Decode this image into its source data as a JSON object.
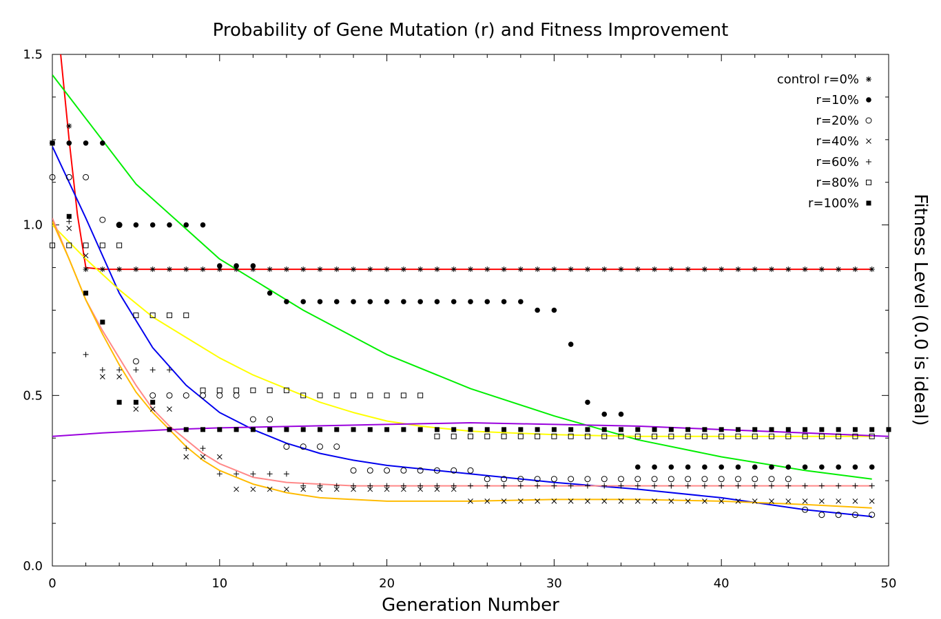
{
  "chart_data": {
    "type": "scatter",
    "title": "Probability of Gene Mutation (r) and Fitness Improvement",
    "xlabel": "Generation Number",
    "ylabel": "Fitness Level (0.0 is ideal)",
    "xlim": [
      0,
      50
    ],
    "ylim": [
      0,
      1.5
    ],
    "x_ticks": [
      0,
      10,
      20,
      30,
      40,
      50
    ],
    "y_ticks": [
      0.0,
      0.5,
      1.0,
      1.5
    ],
    "y_tick_labels": [
      "0.0",
      "0.5",
      "1.0",
      "1.5"
    ],
    "grid": false,
    "legend_position": "top-right",
    "series": [
      {
        "name": "control r=0%",
        "marker": "asterisk",
        "x": [
          0,
          1,
          2,
          3,
          4,
          5,
          6,
          7,
          8,
          9,
          10,
          11,
          12,
          13,
          14,
          15,
          16,
          17,
          18,
          19,
          20,
          21,
          22,
          23,
          24,
          25,
          26,
          27,
          28,
          29,
          30,
          31,
          32,
          33,
          34,
          35,
          36,
          37,
          38,
          39,
          40,
          41,
          42,
          43,
          44,
          45,
          46,
          47,
          48,
          49
        ],
        "y": [
          1.24,
          1.29,
          0.87,
          0.87,
          0.87,
          0.87,
          0.87,
          0.87,
          0.87,
          0.87,
          0.87,
          0.87,
          0.87,
          0.87,
          0.87,
          0.87,
          0.87,
          0.87,
          0.87,
          0.87,
          0.87,
          0.87,
          0.87,
          0.87,
          0.87,
          0.87,
          0.87,
          0.87,
          0.87,
          0.87,
          0.87,
          0.87,
          0.87,
          0.87,
          0.87,
          0.87,
          0.87,
          0.87,
          0.87,
          0.87,
          0.87,
          0.87,
          0.87,
          0.87,
          0.87,
          0.87,
          0.87,
          0.87,
          0.87,
          0.87
        ]
      },
      {
        "name": "r=10%",
        "marker": "filled-circle",
        "x": [
          0,
          1,
          2,
          3,
          4,
          5,
          6,
          7,
          8,
          9,
          10,
          11,
          12,
          13,
          14,
          15,
          16,
          17,
          18,
          19,
          20,
          21,
          22,
          23,
          24,
          25,
          26,
          27,
          28,
          29,
          30,
          31,
          32,
          33,
          34,
          35,
          36,
          37,
          38,
          39,
          40,
          41,
          42,
          43,
          44,
          45,
          46,
          47,
          48,
          49
        ],
        "y": [
          1.24,
          1.24,
          1.24,
          1.24,
          1.0,
          1.0,
          1.0,
          1.0,
          1.0,
          1.0,
          0.88,
          0.88,
          0.88,
          0.8,
          0.775,
          0.775,
          0.775,
          0.775,
          0.775,
          0.775,
          0.775,
          0.775,
          0.775,
          0.775,
          0.775,
          0.775,
          0.775,
          0.775,
          0.775,
          0.75,
          0.75,
          0.65,
          0.48,
          0.445,
          0.445,
          0.29,
          0.29,
          0.29,
          0.29,
          0.29,
          0.29,
          0.29,
          0.29,
          0.29,
          0.29,
          0.29,
          0.29,
          0.29,
          0.29,
          0.29
        ]
      },
      {
        "name": "r=20%",
        "marker": "open-circle",
        "x": [
          0,
          1,
          2,
          3,
          4,
          5,
          6,
          7,
          8,
          9,
          10,
          11,
          12,
          13,
          14,
          15,
          16,
          17,
          18,
          19,
          20,
          21,
          22,
          23,
          24,
          25,
          26,
          27,
          28,
          29,
          30,
          31,
          32,
          33,
          34,
          35,
          36,
          37,
          38,
          39,
          40,
          41,
          42,
          43,
          44,
          45,
          46,
          47,
          48,
          49
        ],
        "y": [
          1.14,
          1.14,
          1.14,
          1.015,
          1.0,
          0.6,
          0.5,
          0.5,
          0.5,
          0.5,
          0.5,
          0.5,
          0.43,
          0.43,
          0.35,
          0.35,
          0.35,
          0.35,
          0.28,
          0.28,
          0.28,
          0.28,
          0.28,
          0.28,
          0.28,
          0.28,
          0.255,
          0.255,
          0.255,
          0.255,
          0.255,
          0.255,
          0.255,
          0.255,
          0.255,
          0.255,
          0.255,
          0.255,
          0.255,
          0.255,
          0.255,
          0.255,
          0.255,
          0.255,
          0.255,
          0.165,
          0.15,
          0.15,
          0.15,
          0.15
        ]
      },
      {
        "name": "r=40%",
        "marker": "x",
        "x": [
          0,
          1,
          2,
          3,
          4,
          5,
          6,
          7,
          8,
          9,
          10,
          11,
          12,
          13,
          14,
          15,
          16,
          17,
          18,
          19,
          20,
          21,
          22,
          23,
          24,
          25,
          26,
          27,
          28,
          29,
          30,
          31,
          32,
          33,
          34,
          35,
          36,
          37,
          38,
          39,
          40,
          41,
          42,
          43,
          44,
          45,
          46,
          47,
          48,
          49
        ],
        "y": [
          1.24,
          0.99,
          0.91,
          0.555,
          0.555,
          0.46,
          0.46,
          0.46,
          0.32,
          0.32,
          0.32,
          0.225,
          0.225,
          0.225,
          0.225,
          0.225,
          0.225,
          0.225,
          0.225,
          0.225,
          0.225,
          0.225,
          0.225,
          0.225,
          0.225,
          0.19,
          0.19,
          0.19,
          0.19,
          0.19,
          0.19,
          0.19,
          0.19,
          0.19,
          0.19,
          0.19,
          0.19,
          0.19,
          0.19,
          0.19,
          0.19,
          0.19,
          0.19,
          0.19,
          0.19,
          0.19,
          0.19,
          0.19,
          0.19,
          0.19
        ]
      },
      {
        "name": "r=60%",
        "marker": "plus",
        "x": [
          0,
          1,
          2,
          3,
          4,
          5,
          6,
          7,
          8,
          9,
          10,
          11,
          12,
          13,
          14,
          15,
          16,
          17,
          18,
          19,
          20,
          21,
          22,
          23,
          24,
          25,
          26,
          27,
          28,
          29,
          30,
          31,
          32,
          33,
          34,
          35,
          36,
          37,
          38,
          39,
          40,
          41,
          42,
          43,
          44,
          45,
          46,
          47,
          48,
          49
        ],
        "y": [
          1.24,
          1.01,
          0.62,
          0.575,
          0.575,
          0.575,
          0.575,
          0.575,
          0.345,
          0.345,
          0.27,
          0.27,
          0.27,
          0.27,
          0.27,
          0.235,
          0.235,
          0.235,
          0.235,
          0.235,
          0.235,
          0.235,
          0.235,
          0.235,
          0.235,
          0.235,
          0.235,
          0.235,
          0.235,
          0.235,
          0.235,
          0.235,
          0.235,
          0.235,
          0.235,
          0.235,
          0.235,
          0.235,
          0.235,
          0.235,
          0.235,
          0.235,
          0.235,
          0.235,
          0.235,
          0.235,
          0.235,
          0.235,
          0.235,
          0.235
        ]
      },
      {
        "name": "r=80%",
        "marker": "open-square",
        "x": [
          0,
          1,
          2,
          3,
          4,
          5,
          6,
          7,
          8,
          9,
          10,
          11,
          12,
          13,
          14,
          15,
          16,
          17,
          18,
          19,
          20,
          21,
          22,
          23,
          24,
          25,
          26,
          27,
          28,
          29,
          30,
          31,
          32,
          33,
          34,
          35,
          36,
          37,
          38,
          39,
          40,
          41,
          42,
          43,
          44,
          45,
          46,
          47,
          48,
          49
        ],
        "y": [
          0.94,
          0.94,
          0.94,
          0.94,
          0.94,
          0.735,
          0.735,
          0.735,
          0.735,
          0.515,
          0.515,
          0.515,
          0.515,
          0.515,
          0.515,
          0.5,
          0.5,
          0.5,
          0.5,
          0.5,
          0.5,
          0.5,
          0.5,
          0.38,
          0.38,
          0.38,
          0.38,
          0.38,
          0.38,
          0.38,
          0.38,
          0.38,
          0.38,
          0.38,
          0.38,
          0.38,
          0.38,
          0.38,
          0.38,
          0.38,
          0.38,
          0.38,
          0.38,
          0.38,
          0.38,
          0.38,
          0.38,
          0.38,
          0.38,
          0.38
        ]
      },
      {
        "name": "r=100%",
        "marker": "filled-square",
        "x": [
          0,
          1,
          2,
          3,
          4,
          5,
          6,
          7,
          8,
          9,
          10,
          11,
          12,
          13,
          14,
          15,
          16,
          17,
          18,
          19,
          20,
          21,
          22,
          23,
          24,
          25,
          26,
          27,
          28,
          29,
          30,
          31,
          32,
          33,
          34,
          35,
          36,
          37,
          38,
          39,
          40,
          41,
          42,
          43,
          44,
          45,
          46,
          47,
          48,
          49,
          50
        ],
        "y": [
          1.24,
          1.025,
          0.8,
          0.715,
          0.48,
          0.48,
          0.48,
          0.4,
          0.4,
          0.4,
          0.4,
          0.4,
          0.4,
          0.4,
          0.4,
          0.4,
          0.4,
          0.4,
          0.4,
          0.4,
          0.4,
          0.4,
          0.4,
          0.4,
          0.4,
          0.4,
          0.4,
          0.4,
          0.4,
          0.4,
          0.4,
          0.4,
          0.4,
          0.4,
          0.4,
          0.4,
          0.4,
          0.4,
          0.4,
          0.4,
          0.4,
          0.4,
          0.4,
          0.4,
          0.4,
          0.4,
          0.4,
          0.4,
          0.4,
          0.4,
          0.4
        ]
      }
    ],
    "fit_lines": [
      {
        "color": "#ff0000",
        "x": [
          0.5,
          1,
          1.5,
          2,
          3,
          5,
          10,
          20,
          30,
          40,
          49
        ],
        "y": [
          1.5,
          1.25,
          1.03,
          0.875,
          0.87,
          0.87,
          0.87,
          0.87,
          0.87,
          0.87,
          0.87
        ]
      },
      {
        "color": "#00ee00",
        "x": [
          0,
          5,
          10,
          15,
          20,
          25,
          30,
          35,
          40,
          45,
          49
        ],
        "y": [
          1.44,
          1.12,
          0.9,
          0.75,
          0.62,
          0.52,
          0.44,
          0.37,
          0.32,
          0.28,
          0.255
        ]
      },
      {
        "color": "#0000ee",
        "x": [
          0,
          2,
          4,
          6,
          8,
          10,
          12,
          14,
          16,
          18,
          20,
          25,
          30,
          35,
          40,
          45,
          49
        ],
        "y": [
          1.23,
          1.02,
          0.8,
          0.64,
          0.53,
          0.45,
          0.4,
          0.36,
          0.33,
          0.31,
          0.295,
          0.27,
          0.245,
          0.225,
          0.2,
          0.165,
          0.145
        ]
      },
      {
        "color": "#ffff00",
        "x": [
          0,
          2,
          4,
          6,
          8,
          10,
          12,
          14,
          16,
          18,
          20,
          22,
          25,
          30,
          35,
          40,
          45,
          49
        ],
        "y": [
          1.0,
          0.9,
          0.81,
          0.73,
          0.67,
          0.61,
          0.56,
          0.52,
          0.48,
          0.45,
          0.425,
          0.41,
          0.395,
          0.385,
          0.38,
          0.38,
          0.38,
          0.38
        ]
      },
      {
        "color": "#ff8888",
        "x": [
          0,
          1,
          2,
          3,
          4,
          5,
          6,
          7,
          8,
          9,
          10,
          12,
          14,
          16,
          18,
          20,
          25,
          30,
          35,
          40,
          45,
          49
        ],
        "y": [
          1.02,
          0.9,
          0.78,
          0.69,
          0.61,
          0.53,
          0.46,
          0.41,
          0.37,
          0.33,
          0.3,
          0.26,
          0.245,
          0.24,
          0.235,
          0.235,
          0.235,
          0.235,
          0.235,
          0.235,
          0.235,
          0.235
        ]
      },
      {
        "color": "#ffbb00",
        "x": [
          0,
          1,
          2,
          3,
          4,
          5,
          6,
          7,
          8,
          9,
          10,
          12,
          14,
          16,
          18,
          20,
          22,
          25,
          30,
          35,
          40,
          45,
          49
        ],
        "y": [
          1.01,
          0.9,
          0.78,
          0.68,
          0.59,
          0.51,
          0.45,
          0.4,
          0.35,
          0.31,
          0.28,
          0.24,
          0.215,
          0.2,
          0.195,
          0.19,
          0.19,
          0.19,
          0.195,
          0.195,
          0.19,
          0.18,
          0.17
        ]
      },
      {
        "color": "#9900dd",
        "x": [
          0,
          3,
          5,
          7,
          10,
          15,
          20,
          25,
          30,
          35,
          40,
          45,
          50
        ],
        "y": [
          0.38,
          0.39,
          0.395,
          0.4,
          0.405,
          0.41,
          0.415,
          0.42,
          0.415,
          0.41,
          0.4,
          0.39,
          0.38
        ]
      }
    ]
  }
}
